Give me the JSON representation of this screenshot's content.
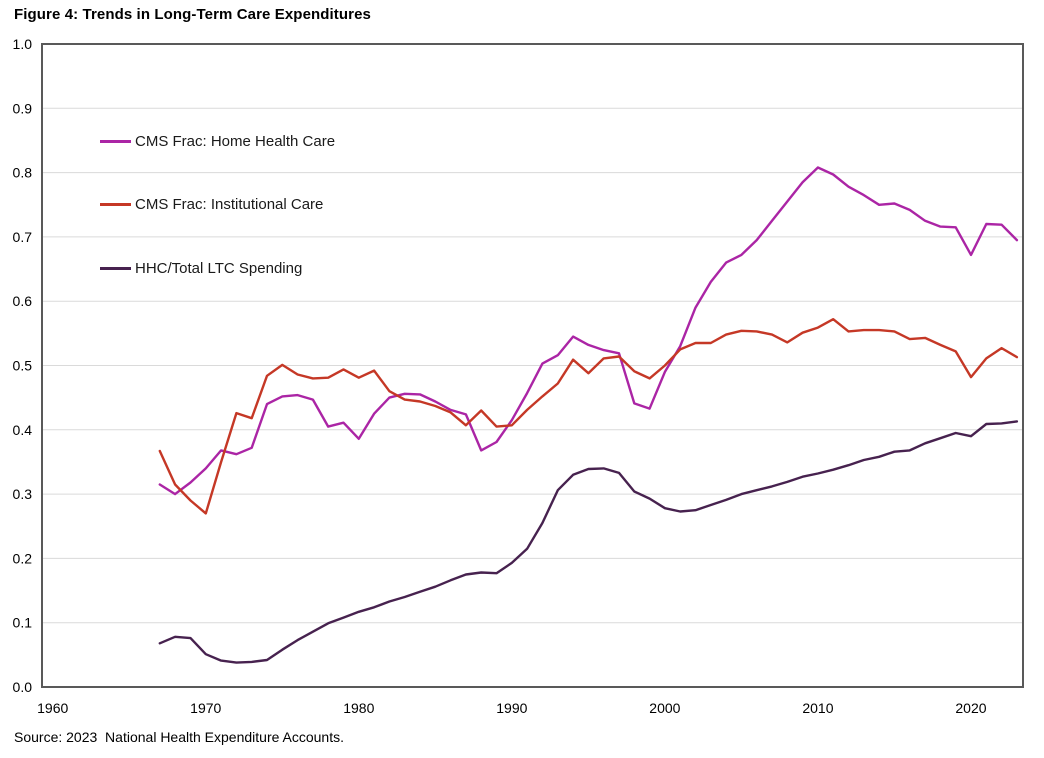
{
  "title": "Figure 4: Trends in Long-Term Care Expenditures",
  "source": "Source: 2023  National Health Expenditure Accounts.",
  "legend": {
    "items": [
      {
        "label": "CMS Frac: Home Health Care",
        "color": "#AB25A5"
      },
      {
        "label": "CMS Frac: Institutional Care",
        "color": "#C53826"
      },
      {
        "label": "HHC/Total LTC Spending",
        "color": "#47224F"
      }
    ]
  },
  "colors": {
    "grid": "#DADADA",
    "plot_border": "#595959",
    "text": "#000000"
  },
  "chart_data": {
    "type": "line",
    "title": "Figure 4: Trends in Long-Term Care Expenditures",
    "xlabel": "",
    "ylabel": "",
    "grid": true,
    "legend_position": "upper-left-inside",
    "xlim": [
      1959.3,
      2023.4
    ],
    "ylim": [
      0.0,
      1.0
    ],
    "x_ticks": [
      1960,
      1970,
      1980,
      1990,
      2000,
      2010,
      2020
    ],
    "x_tick_labels": [
      "1960",
      "1970",
      "1980",
      "1990",
      "2000",
      "2010",
      "2020"
    ],
    "y_ticks": [
      0.0,
      0.1,
      0.2,
      0.3,
      0.4,
      0.5,
      0.6,
      0.7,
      0.8,
      0.9,
      1.0
    ],
    "y_tick_labels": [
      "0.0",
      "0.1",
      "0.2",
      "0.3",
      "0.4",
      "0.5",
      "0.6",
      "0.7",
      "0.8",
      "0.9",
      "1.0"
    ],
    "x": [
      1967,
      1968,
      1969,
      1970,
      1971,
      1972,
      1973,
      1974,
      1975,
      1976,
      1977,
      1978,
      1979,
      1980,
      1981,
      1982,
      1983,
      1984,
      1985,
      1986,
      1987,
      1988,
      1989,
      1990,
      1991,
      1992,
      1993,
      1994,
      1995,
      1996,
      1997,
      1998,
      1999,
      2000,
      2001,
      2002,
      2003,
      2004,
      2005,
      2006,
      2007,
      2008,
      2009,
      2010,
      2011,
      2012,
      2013,
      2014,
      2015,
      2016,
      2017,
      2018,
      2019,
      2020,
      2021,
      2022,
      2023
    ],
    "series": [
      {
        "name": "CMS Frac: Home Health Care",
        "color": "#AB25A5",
        "values": [
          0.315,
          0.3,
          0.318,
          0.34,
          0.368,
          0.362,
          0.372,
          0.44,
          0.452,
          0.454,
          0.447,
          0.405,
          0.411,
          0.386,
          0.425,
          0.45,
          0.456,
          0.455,
          0.444,
          0.431,
          0.424,
          0.368,
          0.381,
          0.415,
          0.457,
          0.503,
          0.516,
          0.545,
          0.532,
          0.524,
          0.519,
          0.441,
          0.433,
          0.49,
          0.53,
          0.59,
          0.63,
          0.66,
          0.672,
          0.695,
          0.725,
          0.755,
          0.785,
          0.808,
          0.797,
          0.778,
          0.765,
          0.75,
          0.752,
          0.742,
          0.725,
          0.716,
          0.715,
          0.672,
          0.72,
          0.719,
          0.695
        ]
      },
      {
        "name": "CMS Frac: Institutional Care",
        "color": "#C53826",
        "values": [
          0.367,
          0.315,
          0.29,
          0.27,
          0.35,
          0.426,
          0.418,
          0.484,
          0.501,
          0.486,
          0.48,
          0.481,
          0.494,
          0.481,
          0.492,
          0.46,
          0.447,
          0.444,
          0.437,
          0.427,
          0.407,
          0.43,
          0.405,
          0.407,
          0.431,
          0.452,
          0.472,
          0.509,
          0.488,
          0.511,
          0.514,
          0.491,
          0.48,
          0.5,
          0.525,
          0.535,
          0.535,
          0.548,
          0.554,
          0.553,
          0.548,
          0.536,
          0.551,
          0.559,
          0.572,
          0.553,
          0.555,
          0.555,
          0.553,
          0.541,
          0.543,
          0.532,
          0.522,
          0.482,
          0.511,
          0.527,
          0.513
        ]
      },
      {
        "name": "HHC/Total LTC Spending",
        "color": "#47224F",
        "values": [
          0.068,
          0.078,
          0.076,
          0.051,
          0.041,
          0.038,
          0.039,
          0.042,
          0.058,
          0.073,
          0.086,
          0.099,
          0.108,
          0.117,
          0.124,
          0.133,
          0.14,
          0.148,
          0.156,
          0.166,
          0.175,
          0.178,
          0.177,
          0.193,
          0.215,
          0.255,
          0.306,
          0.33,
          0.339,
          0.34,
          0.333,
          0.304,
          0.293,
          0.278,
          0.273,
          0.275,
          0.283,
          0.291,
          0.3,
          0.306,
          0.312,
          0.319,
          0.327,
          0.332,
          0.338,
          0.345,
          0.353,
          0.358,
          0.366,
          0.368,
          0.379,
          0.387,
          0.395,
          0.39,
          0.409,
          0.41,
          0.413
        ]
      }
    ]
  }
}
